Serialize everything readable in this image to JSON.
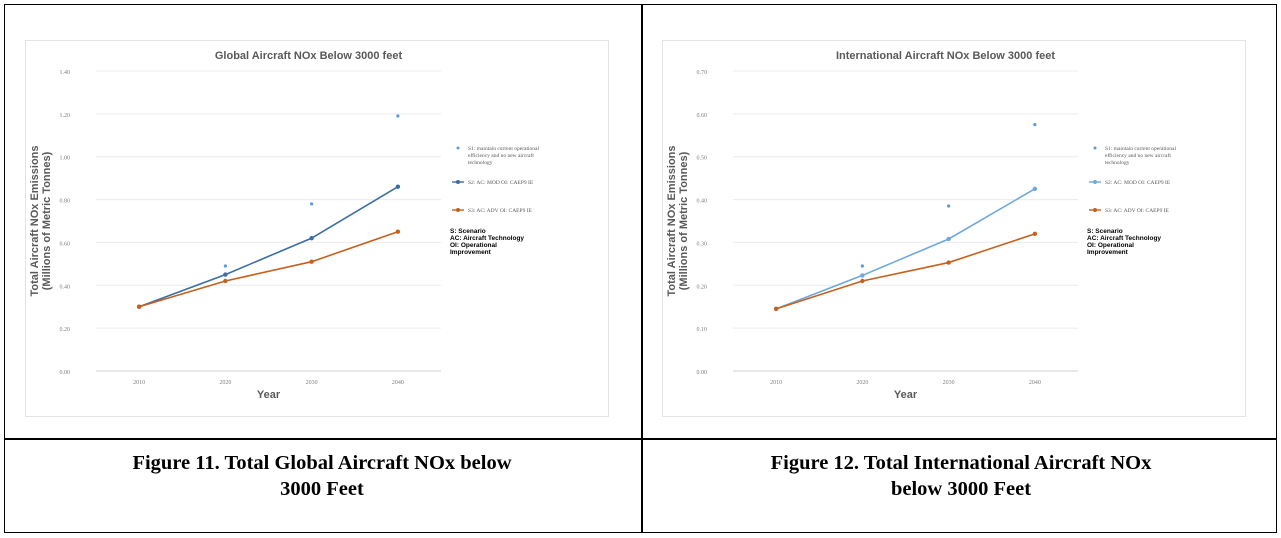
{
  "chart_data": [
    {
      "type": "line",
      "title": "Global Aircraft NOx Below 3000 feet",
      "xlabel": "Year",
      "ylabel": "Total Aircraft NOx Emissions",
      "ylabel2": "(Millions of Metric Tonnes)",
      "categories": [
        "2010",
        "2020",
        "2030",
        "2040"
      ],
      "ylim": [
        0,
        1.4
      ],
      "yticks": [
        "0.00",
        "0.20",
        "0.40",
        "0.60",
        "0.80",
        "1.00",
        "1.20",
        "1.40"
      ],
      "ytick_values": [
        0,
        0.2,
        0.4,
        0.6,
        0.8,
        1.0,
        1.2,
        1.4
      ],
      "grid": true,
      "legend_position": "right",
      "series": [
        {
          "name": "S1: maintain current operational efficiency and no new aircraft technology",
          "values": [
            0.3,
            0.49,
            0.78,
            1.19
          ],
          "color": "#5b9bd5",
          "style": "markers"
        },
        {
          "name": "S2: AC: MOD OI: CAEP9 IE",
          "values": [
            0.3,
            0.45,
            0.62,
            0.86
          ],
          "color": "#3a6ea5",
          "style": "line-markers"
        },
        {
          "name": "S3: AC: ADV OI: CAEP9 IE",
          "values": [
            0.3,
            0.42,
            0.51,
            0.65
          ],
          "color": "#c5601e",
          "style": "line-markers"
        }
      ],
      "notes": [
        "S: Scenario",
        "AC: Aircraft Technology",
        "OI: Operational",
        "Improvement"
      ]
    },
    {
      "type": "line",
      "title": "International Aircraft NOx Below 3000 feet",
      "xlabel": "Year",
      "ylabel": "Total Aircraft NOx Emissions",
      "ylabel2": "(Millions of Metric Tonnes)",
      "categories": [
        "2010",
        "2020",
        "2030",
        "2040"
      ],
      "ylim": [
        0,
        0.7
      ],
      "yticks": [
        "0.00",
        "0.10",
        "0.20",
        "0.30",
        "0.40",
        "0.50",
        "0.60",
        "0.70"
      ],
      "ytick_values": [
        0,
        0.1,
        0.2,
        0.3,
        0.4,
        0.5,
        0.6,
        0.7
      ],
      "grid": true,
      "legend_position": "right",
      "series": [
        {
          "name": "S1: maintain current operational efficiency and no new aircraft technology",
          "values": [
            0.145,
            0.245,
            0.385,
            0.575
          ],
          "color": "#5b9bd5",
          "style": "markers"
        },
        {
          "name": "S2: AC: MOD OI: CAEP9 IE",
          "values": [
            0.145,
            0.223,
            0.308,
            0.425
          ],
          "color": "#6fa8dc",
          "style": "line-markers"
        },
        {
          "name": "S3: AC: ADV OI: CAEP9 IE",
          "values": [
            0.145,
            0.21,
            0.253,
            0.32
          ],
          "color": "#c5601e",
          "style": "line-markers"
        }
      ],
      "notes": [
        "S: Scenario",
        "AC: Aircraft Technology",
        "OI: Operational",
        "Improvement"
      ]
    }
  ],
  "captions": {
    "left": [
      "Figure 11. Total Global Aircraft NOx below",
      "3000 Feet"
    ],
    "right": [
      "Figure 12. Total International Aircraft NOx",
      "below 3000 Feet"
    ]
  }
}
